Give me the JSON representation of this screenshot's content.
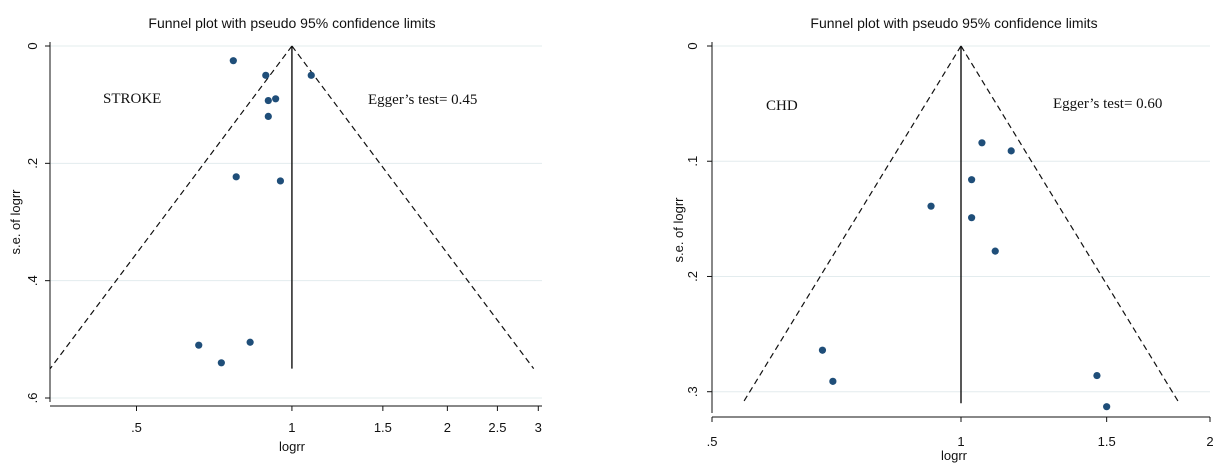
{
  "chart_data": [
    {
      "type": "scatter",
      "title": "Funnel plot with pseudo 95% confidence limits",
      "xlabel": "logrr",
      "ylabel": "s.e. of logrr",
      "x_scale": "log",
      "y_reversed": true,
      "xlim": [
        0.34,
        3.05
      ],
      "ylim": [
        0,
        0.6
      ],
      "x_ticks": [
        {
          "v": 0.5,
          "label": ".5"
        },
        {
          "v": 1,
          "label": "1"
        },
        {
          "v": 1.5,
          "label": "1.5"
        },
        {
          "v": 2,
          "label": "2"
        },
        {
          "v": 2.5,
          "label": "2.5"
        },
        {
          "v": 3,
          "label": "3"
        }
      ],
      "y_ticks": [
        {
          "v": 0,
          "label": "0"
        },
        {
          "v": 0.2,
          "label": ".2"
        },
        {
          "v": 0.4,
          "label": ".4"
        },
        {
          "v": 0.6,
          "label": ".6"
        }
      ],
      "grid": true,
      "pooled_estimate": 1.0,
      "funnel_max_se": 0.55,
      "annotations": [
        "STROKE",
        "Egger’s test= 0.45"
      ],
      "series": [
        {
          "x": [
            0.77,
            0.89,
            1.09,
            0.9,
            0.93,
            0.9,
            0.78,
            0.95,
            0.66,
            0.83,
            0.73
          ],
          "y": [
            0.025,
            0.05,
            0.05,
            0.093,
            0.09,
            0.12,
            0.223,
            0.23,
            0.51,
            0.505,
            0.54
          ]
        }
      ]
    },
    {
      "type": "scatter",
      "title": "Funnel plot with pseudo 95% confidence limits",
      "xlabel": "logrr",
      "ylabel": "s.e. of logrr",
      "x_scale": "log",
      "y_reversed": true,
      "xlim": [
        0.5,
        2.0
      ],
      "ylim": [
        0,
        0.315
      ],
      "x_ticks": [
        {
          "v": 0.5,
          "label": ".5"
        },
        {
          "v": 1,
          "label": "1"
        },
        {
          "v": 1.5,
          "label": "1.5"
        },
        {
          "v": 2,
          "label": "2"
        }
      ],
      "y_ticks": [
        {
          "v": 0,
          "label": "0"
        },
        {
          "v": 0.1,
          "label": ".1"
        },
        {
          "v": 0.2,
          "label": ".2"
        },
        {
          "v": 0.3,
          "label": ".3"
        }
      ],
      "grid": true,
      "pooled_estimate": 1.0,
      "funnel_max_se": 0.31,
      "annotations": [
        "CHD",
        "Egger’s test= 0.60"
      ],
      "series": [
        {
          "x": [
            1.06,
            1.15,
            1.03,
            0.92,
            1.03,
            1.1,
            0.68,
            0.7,
            1.46,
            1.5
          ],
          "y": [
            0.084,
            0.091,
            0.116,
            0.139,
            0.149,
            0.178,
            0.264,
            0.291,
            0.286,
            0.313
          ]
        }
      ]
    }
  ]
}
